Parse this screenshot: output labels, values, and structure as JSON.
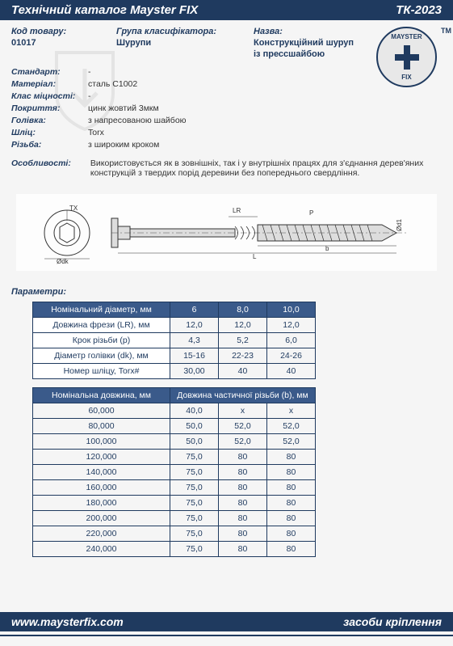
{
  "header": {
    "title": "Технічний каталог Mayster FIX",
    "code": "ТК-2023"
  },
  "top": {
    "code_label": "Код товару:",
    "code_value": "01017",
    "group_label": "Група класифікатора:",
    "group_value": "Шурупи",
    "name_label": "Назва:",
    "name_value1": "Конструкційний шуруп",
    "name_value2": "із прессшайбою"
  },
  "specs": [
    {
      "label": "Стандарт:",
      "value": "-"
    },
    {
      "label": "Матеріал:",
      "value": "сталь С1002"
    },
    {
      "label": "Клас міцності:",
      "value": "-"
    },
    {
      "label": "Покриття:",
      "value": "цинк жовтий 3мкм"
    },
    {
      "label": "Голівка:",
      "value": "з напресованою шайбою"
    },
    {
      "label": "Шліц:",
      "value": "Torx"
    },
    {
      "label": "Різьба:",
      "value": "з широким кроком"
    }
  ],
  "features": {
    "label": "Особливості:",
    "text": "Використовується як в зовнішніх, так і у внутрішніх працях для з'єднання дерев'яних конструкцій з твердих порід деревини без попереднього свердління."
  },
  "logo": {
    "line1": "MAYSTER",
    "line2": "FIX",
    "tm": "TM"
  },
  "diagram": {
    "labels": {
      "tx": "TX",
      "dk": "Ødk",
      "lr": "LR",
      "l": "L",
      "b": "b",
      "p": "P",
      "d1": "Ød1"
    }
  },
  "params_label": "Параметри:",
  "table1": {
    "headers": [
      "Номінальний діаметр, мм",
      "6",
      "8,0",
      "10,0"
    ],
    "rows": [
      [
        "Довжина фрези (LR), мм",
        "12,0",
        "12,0",
        "12,0"
      ],
      [
        "Крок різьби (р)",
        "4,3",
        "5,2",
        "6,0"
      ],
      [
        "Діаметр голівки (dk), мм",
        "15-16",
        "22-23",
        "24-26"
      ],
      [
        "Номер шліцу, Torx#",
        "30,00",
        "40",
        "40"
      ]
    ],
    "col_widths": [
      "170px",
      "60px",
      "60px",
      "60px"
    ]
  },
  "table2": {
    "headers": [
      "Номінальна довжина, мм",
      "Довжина частичної різьби (b), мм"
    ],
    "header_colspan": [
      1,
      3
    ],
    "rows": [
      [
        "60,000",
        "40,0",
        "x",
        "x"
      ],
      [
        "80,000",
        "50,0",
        "52,0",
        "52,0"
      ],
      [
        "100,000",
        "50,0",
        "52,0",
        "52,0"
      ],
      [
        "120,000",
        "75,0",
        "80",
        "80"
      ],
      [
        "140,000",
        "75,0",
        "80",
        "80"
      ],
      [
        "160,000",
        "75,0",
        "80",
        "80"
      ],
      [
        "180,000",
        "75,0",
        "80",
        "80"
      ],
      [
        "200,000",
        "75,0",
        "80",
        "80"
      ],
      [
        "220,000",
        "75,0",
        "80",
        "80"
      ],
      [
        "240,000",
        "75,0",
        "80",
        "80"
      ]
    ],
    "col_widths": [
      "170px",
      "60px",
      "60px",
      "60px"
    ]
  },
  "footer": {
    "url": "www.maysterfix.com",
    "slogan": "засоби кріплення"
  },
  "colors": {
    "primary": "#1f3a5f",
    "header_bg": "#3a5a8a",
    "page_bg": "#f5f5f5"
  }
}
